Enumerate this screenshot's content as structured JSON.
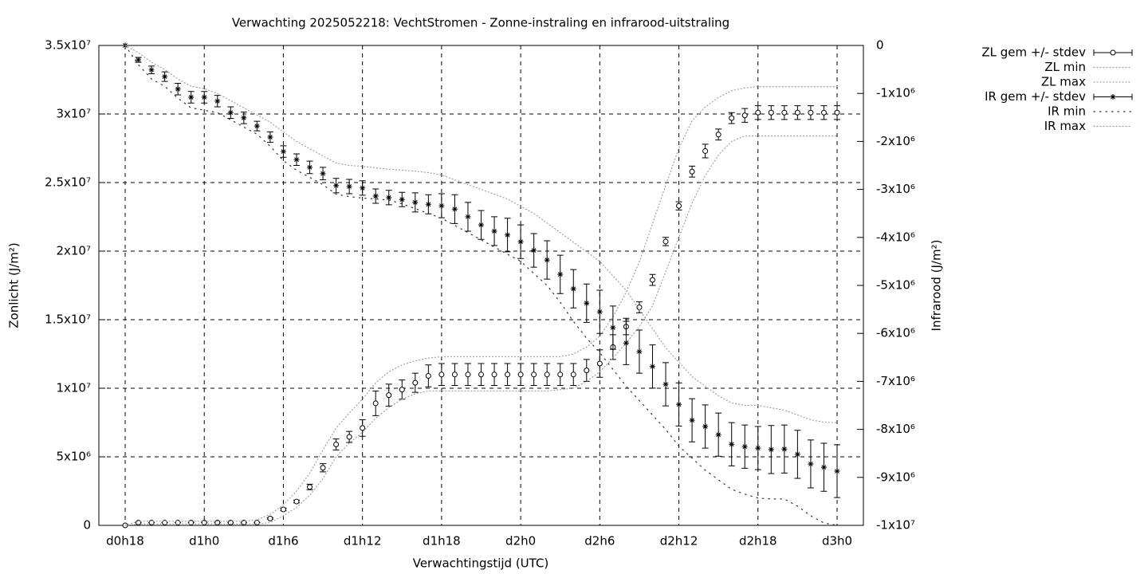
{
  "chart_data": {
    "type": "errorbar",
    "title": "Verwachting 2025052218: VechtStromen - Zonne-instraling en infrarood-uitstraling",
    "x_label": "Verwachtingstijd (UTC)",
    "y_label": "Zonlicht (J/m²)",
    "y2_label": "Infrarood (J/m²)",
    "categories": [
      "d0h18",
      null,
      null,
      null,
      null,
      null,
      "d1h0",
      null,
      null,
      null,
      null,
      null,
      "d1h6",
      null,
      null,
      null,
      null,
      null,
      "d1h12",
      null,
      null,
      null,
      null,
      null,
      "d1h18",
      null,
      null,
      null,
      null,
      null,
      "d2h0",
      null,
      null,
      null,
      null,
      null,
      "d2h6",
      null,
      null,
      null,
      null,
      null,
      "d2h12",
      null,
      null,
      null,
      null,
      null,
      "d2h18",
      null,
      null,
      null,
      null,
      null,
      "d3h0"
    ],
    "ylim": [
      0,
      35000000
    ],
    "yticks": [
      0,
      {
        "value": 5000000,
        "label": "5x10⁶"
      },
      {
        "value": 10000000,
        "label": "1x10⁷"
      },
      {
        "value": 15000000,
        "label": "1.5x10⁷"
      },
      {
        "value": 20000000,
        "label": "2x10⁷"
      },
      {
        "value": 25000000,
        "label": "2.5x10⁷"
      },
      {
        "value": 30000000,
        "label": "3x10⁷"
      },
      {
        "value": 35000000,
        "label": "3.5x10⁷"
      }
    ],
    "y2lim": [
      -10000000,
      0
    ],
    "y2ticks": [
      0,
      {
        "value": -1000000,
        "label": "-1x10⁶"
      },
      {
        "value": -2000000,
        "label": "-2x10⁶"
      },
      {
        "value": -3000000,
        "label": "-3x10⁶"
      },
      {
        "value": -4000000,
        "label": "-4x10⁶"
      },
      {
        "value": -5000000,
        "label": "-5x10⁶"
      },
      {
        "value": -6000000,
        "label": "-6x10⁶"
      },
      {
        "value": -7000000,
        "label": "-7x10⁶"
      },
      {
        "value": -8000000,
        "label": "-8x10⁶"
      },
      {
        "value": -9000000,
        "label": "-9x10⁶"
      },
      {
        "value": -10000000,
        "label": "-1x10⁷"
      }
    ],
    "grid": true,
    "legend": "outside-right",
    "series": [
      {
        "name": "ZL gem +/- stdev",
        "style": "errorbars",
        "marker": "circle",
        "color": "#000000",
        "axis": "y",
        "values": [
          0,
          200000,
          200000,
          200000,
          200000,
          200000,
          200000,
          200000,
          200000,
          200000,
          200000,
          500000,
          1160000,
          1740000,
          2800000,
          4200000,
          5900000,
          6450000,
          7100000,
          8900000,
          9500000,
          9900000,
          10400000,
          10900000,
          11000000,
          11000000,
          11000000,
          11000000,
          11000000,
          11000000,
          11000000,
          11000000,
          11000000,
          11000000,
          11000000,
          11300000,
          11800000,
          13000000,
          14500000,
          15900000,
          17900000,
          20700000,
          23300000,
          25800000,
          27300000,
          28500000,
          29700000,
          29900000,
          30100000,
          30100000,
          30100000,
          30100000,
          30100000,
          30100000,
          30100000
        ],
        "errors": [
          0,
          0,
          0,
          0,
          0,
          0,
          0,
          0,
          0,
          0,
          0,
          50000,
          100000,
          100000,
          200000,
          300000,
          400000,
          400000,
          600000,
          900000,
          800000,
          700000,
          700000,
          800000,
          800000,
          800000,
          800000,
          800000,
          800000,
          800000,
          800000,
          800000,
          800000,
          800000,
          800000,
          800000,
          1000000,
          900000,
          600000,
          400000,
          400000,
          300000,
          300000,
          400000,
          500000,
          400000,
          400000,
          500000,
          500000,
          500000,
          500000,
          500000,
          500000,
          500000,
          500000
        ]
      },
      {
        "name": "ZL min",
        "style": "dotted",
        "color": "#a0a0a0",
        "axis": "y",
        "values": [
          0,
          100000,
          100000,
          100000,
          100000,
          100000,
          100000,
          100000,
          100000,
          100000,
          100000,
          200000,
          700000,
          1300000,
          2200000,
          3400000,
          5000000,
          6000000,
          6800000,
          7800000,
          8600000,
          9200000,
          9600000,
          9800000,
          9800000,
          9800000,
          9800000,
          9800000,
          9800000,
          9800000,
          9800000,
          9800000,
          9800000,
          9900000,
          10000000,
          10500000,
          11200000,
          12200000,
          13300000,
          14500000,
          16000000,
          18500000,
          21000000,
          23500000,
          25500000,
          27000000,
          28000000,
          28400000,
          28400000,
          28400000,
          28400000,
          28400000,
          28400000,
          28400000,
          28400000
        ]
      },
      {
        "name": "ZL max",
        "style": "dotted",
        "color": "#a0a0a0",
        "axis": "y",
        "values": [
          0,
          300000,
          300000,
          300000,
          300000,
          300000,
          300000,
          300000,
          300000,
          300000,
          400000,
          800000,
          1500000,
          2500000,
          3800000,
          5500000,
          7100000,
          8200000,
          9200000,
          10400000,
          11200000,
          11700000,
          12000000,
          12200000,
          12300000,
          12300000,
          12300000,
          12300000,
          12300000,
          12300000,
          12300000,
          12300000,
          12300000,
          12300000,
          12500000,
          13000000,
          13800000,
          15200000,
          17000000,
          19200000,
          22000000,
          24800000,
          27500000,
          29500000,
          30500000,
          31200000,
          31700000,
          31900000,
          32000000,
          32000000,
          32000000,
          32000000,
          32000000,
          32000000,
          32000000
        ]
      },
      {
        "name": "IR gem +/- stdev",
        "style": "errorbars",
        "marker": "star",
        "color": "#000000",
        "axis": "y2",
        "values": [
          0,
          -300000,
          -510000,
          -650000,
          -910000,
          -1080000,
          -1080000,
          -1160000,
          -1400000,
          -1510000,
          -1680000,
          -1910000,
          -2210000,
          -2380000,
          -2540000,
          -2670000,
          -2920000,
          -2940000,
          -2970000,
          -3140000,
          -3170000,
          -3210000,
          -3270000,
          -3310000,
          -3340000,
          -3410000,
          -3570000,
          -3740000,
          -3870000,
          -3950000,
          -4090000,
          -4270000,
          -4470000,
          -4770000,
          -5070000,
          -5370000,
          -5550000,
          -5880000,
          -6200000,
          -6380000,
          -6690000,
          -7060000,
          -7480000,
          -7810000,
          -7940000,
          -8110000,
          -8310000,
          -8360000,
          -8390000,
          -8420000,
          -8410000,
          -8520000,
          -8720000,
          -8790000,
          -8870000
        ],
        "errors": [
          0,
          50000,
          80000,
          100000,
          120000,
          120000,
          120000,
          120000,
          120000,
          120000,
          100000,
          110000,
          120000,
          120000,
          130000,
          130000,
          150000,
          150000,
          150000,
          150000,
          150000,
          150000,
          200000,
          200000,
          250000,
          300000,
          300000,
          300000,
          300000,
          350000,
          350000,
          350000,
          400000,
          400000,
          400000,
          400000,
          450000,
          450000,
          450000,
          450000,
          450000,
          450000,
          450000,
          450000,
          450000,
          450000,
          450000,
          450000,
          450000,
          500000,
          500000,
          500000,
          500000,
          500000,
          550000
        ]
      },
      {
        "name": "IR min",
        "style": "dotted-coarse",
        "color": "#333333",
        "axis": "y2",
        "values": [
          0,
          -400000,
          -700000,
          -850000,
          -1100000,
          -1300000,
          -1350000,
          -1400000,
          -1550000,
          -1700000,
          -1850000,
          -2100000,
          -2400000,
          -2600000,
          -2750000,
          -2900000,
          -3100000,
          -3150000,
          -3180000,
          -3200000,
          -3220000,
          -3300000,
          -3400000,
          -3500000,
          -3600000,
          -3750000,
          -3900000,
          -4050000,
          -4200000,
          -4350000,
          -4500000,
          -4750000,
          -5000000,
          -5350000,
          -5750000,
          -6100000,
          -6400000,
          -6750000,
          -7100000,
          -7400000,
          -7700000,
          -8000000,
          -8350000,
          -8600000,
          -8850000,
          -9050000,
          -9250000,
          -9350000,
          -9430000,
          -9450000,
          -9450000,
          -9600000,
          -9800000,
          -9950000,
          -10000000
        ]
      },
      {
        "name": "IR max",
        "style": "dotted",
        "color": "#a0a0a0",
        "axis": "y2",
        "values": [
          0,
          -150000,
          -350000,
          -500000,
          -700000,
          -850000,
          -900000,
          -1000000,
          -1150000,
          -1300000,
          -1450000,
          -1600000,
          -1800000,
          -2000000,
          -2150000,
          -2300000,
          -2450000,
          -2500000,
          -2520000,
          -2550000,
          -2580000,
          -2600000,
          -2620000,
          -2650000,
          -2700000,
          -2800000,
          -2900000,
          -3000000,
          -3100000,
          -3200000,
          -3350000,
          -3500000,
          -3700000,
          -3900000,
          -4100000,
          -4300000,
          -4500000,
          -4800000,
          -5100000,
          -5500000,
          -5900000,
          -6300000,
          -6600000,
          -6900000,
          -7100000,
          -7300000,
          -7450000,
          -7500000,
          -7500000,
          -7550000,
          -7600000,
          -7700000,
          -7800000,
          -7850000,
          -7860000
        ]
      }
    ]
  }
}
